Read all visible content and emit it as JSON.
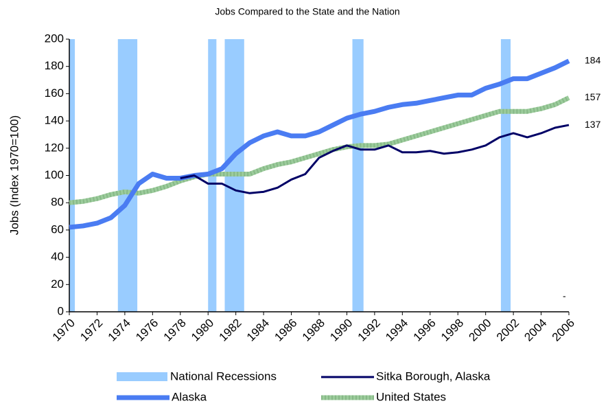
{
  "chart_data": {
    "type": "line",
    "title": "Jobs Compared to the State and the Nation",
    "y_label": "Jobs (Index 1970=100)",
    "x": [
      1970,
      1971,
      1972,
      1973,
      1974,
      1975,
      1976,
      1977,
      1978,
      1979,
      1980,
      1981,
      1982,
      1983,
      1984,
      1985,
      1986,
      1987,
      1988,
      1989,
      1990,
      1991,
      1992,
      1993,
      1994,
      1995,
      1996,
      1997,
      1998,
      1999,
      2000,
      2001,
      2002,
      2003,
      2004,
      2005,
      2006
    ],
    "xlim": [
      1970,
      2006
    ],
    "xticks": [
      1970,
      1972,
      1974,
      1976,
      1978,
      1980,
      1982,
      1984,
      1986,
      1988,
      1990,
      1992,
      1994,
      1996,
      1998,
      2000,
      2002,
      2004,
      2006
    ],
    "ylim": [
      0,
      200
    ],
    "yticks": [
      0,
      20,
      40,
      60,
      80,
      100,
      120,
      140,
      160,
      180,
      200
    ],
    "recessions": {
      "name": "National Recessions",
      "color": "#99ccff",
      "ranges": [
        [
          1970,
          1970.4
        ],
        [
          1973.5,
          1974.9
        ],
        [
          1980.0,
          1980.6
        ],
        [
          1981.2,
          1982.6
        ],
        [
          1990.4,
          1991.2
        ],
        [
          2001.1,
          2001.8
        ]
      ]
    },
    "series": [
      {
        "name": "Sitka Borough, Alaska",
        "color": "#000066",
        "width": 3,
        "values": [
          null,
          null,
          null,
          null,
          null,
          null,
          null,
          null,
          98,
          100,
          94,
          94,
          89,
          87,
          88,
          91,
          97,
          101,
          113,
          118,
          122,
          119,
          119,
          122,
          117,
          117,
          118,
          116,
          117,
          119,
          122,
          128,
          131,
          128,
          131,
          135,
          137
        ]
      },
      {
        "name": "Alaska",
        "color": "#4a7cf2",
        "width": 7,
        "values": [
          62,
          63,
          65,
          69,
          78,
          94,
          101,
          98,
          98,
          100,
          101,
          105,
          116,
          124,
          129,
          132,
          129,
          129,
          132,
          137,
          142,
          145,
          147,
          150,
          152,
          153,
          155,
          157,
          159,
          159,
          164,
          167,
          171,
          171,
          175,
          179,
          184
        ]
      },
      {
        "name": "United States",
        "color": "#9ccc9c",
        "width": 7,
        "values": [
          80,
          81,
          83,
          86,
          88,
          87,
          89,
          92,
          96,
          99,
          101,
          101,
          101,
          101,
          105,
          108,
          110,
          113,
          116,
          119,
          121,
          122,
          122,
          123,
          126,
          129,
          132,
          135,
          138,
          141,
          144,
          147,
          147,
          147,
          149,
          152,
          157
        ]
      }
    ],
    "annotation": "-"
  }
}
